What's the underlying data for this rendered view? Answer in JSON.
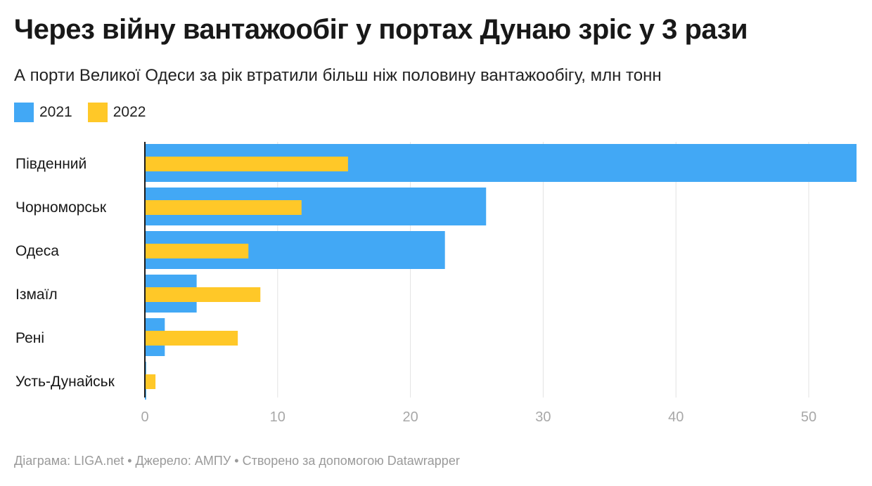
{
  "title": "Через війну вантажообіг у портах Дунаю зріс у 3 рази",
  "subtitle": "А порти Великої Одеси за рік втратили більш ніж половину вантажообігу, млн тонн",
  "footer": "Діаграма: LIGA.net • Джерело: АМПУ • Створено за допомогою Datawrapper",
  "colors": {
    "s2021": "#42a8f5",
    "s2022": "#ffc828",
    "grid": "#e3e3e3",
    "axis": "#1a1a1a",
    "tick": "#a8a8a8"
  },
  "chart_data": {
    "type": "bar",
    "orientation": "horizontal",
    "categories": [
      "Південний",
      "Чорноморськ",
      "Одеса",
      "Ізмаїл",
      "Рені",
      "Усть-Дунайськ"
    ],
    "series": [
      {
        "name": "2021",
        "values": [
          53.6,
          25.7,
          22.6,
          3.9,
          1.5,
          0.1
        ]
      },
      {
        "name": "2022",
        "values": [
          15.3,
          11.8,
          7.8,
          8.7,
          7.0,
          0.8
        ]
      }
    ],
    "xticks": [
      0,
      10,
      20,
      30,
      40,
      50
    ],
    "xlim": [
      0,
      53.6
    ],
    "grid": true,
    "legend": "top-left"
  }
}
